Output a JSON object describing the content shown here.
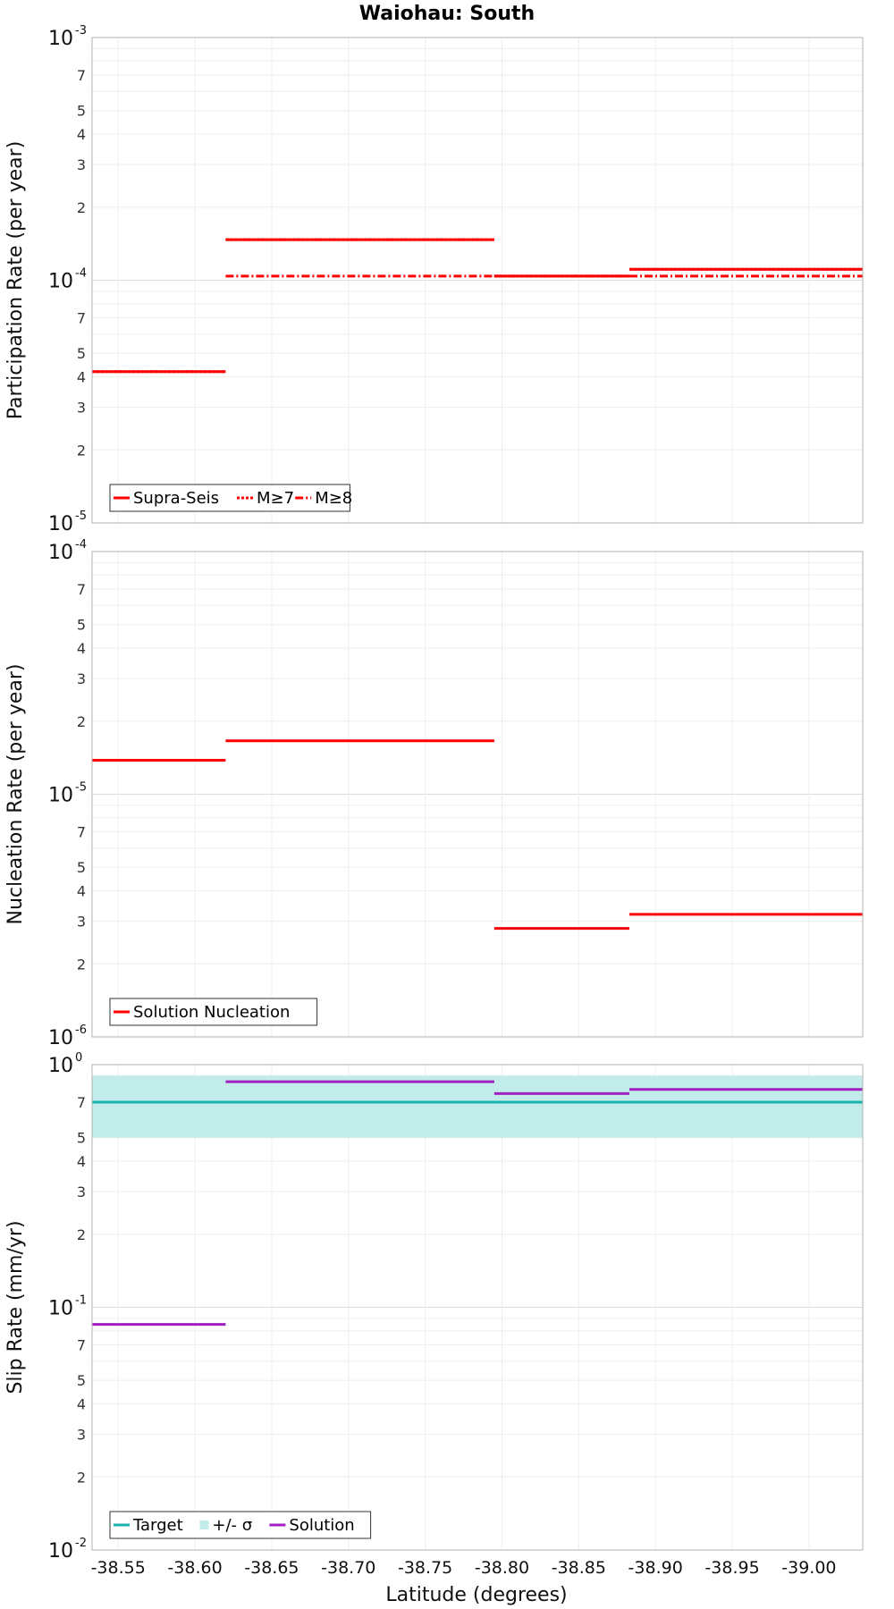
{
  "title": "Waiohau: South",
  "xlabel": "Latitude (degrees)",
  "x_range": [
    -38.533,
    -39.035
  ],
  "x_ticks": [
    {
      "value": -38.55,
      "label": "-38.55"
    },
    {
      "value": -38.6,
      "label": "-38.60"
    },
    {
      "value": -38.65,
      "label": "-38.65"
    },
    {
      "value": -38.7,
      "label": "-38.70"
    },
    {
      "value": -38.75,
      "label": "-38.75"
    },
    {
      "value": -38.8,
      "label": "-38.80"
    },
    {
      "value": -38.85,
      "label": "-38.85"
    },
    {
      "value": -38.9,
      "label": "-38.90"
    },
    {
      "value": -38.95,
      "label": "-38.95"
    },
    {
      "value": -39.0,
      "label": "-39.00"
    }
  ],
  "chart_data": [
    {
      "type": "line",
      "name": "participation",
      "ylabel": "Participation Rate (per year)",
      "yscale": "log",
      "ylim": [
        1e-05,
        0.001
      ],
      "y_major_labels": [
        {
          "value": 0.001,
          "base": "10",
          "exp": "-3"
        },
        {
          "value": 0.0001,
          "base": "10",
          "exp": "-4"
        },
        {
          "value": 1e-05,
          "base": "10",
          "exp": "-5"
        }
      ],
      "y_minor_labels": [
        {
          "value": 0.0007,
          "label": "7"
        },
        {
          "value": 0.0005,
          "label": "5"
        },
        {
          "value": 0.0004,
          "label": "4"
        },
        {
          "value": 0.0003,
          "label": "3"
        },
        {
          "value": 0.0002,
          "label": "2"
        },
        {
          "value": 7e-05,
          "label": "7"
        },
        {
          "value": 5e-05,
          "label": "5"
        },
        {
          "value": 4e-05,
          "label": "4"
        },
        {
          "value": 3e-05,
          "label": "3"
        },
        {
          "value": 2e-05,
          "label": "2"
        }
      ],
      "series": [
        {
          "name": "Supra-Seis",
          "color": "#ff0000",
          "dash": "solid",
          "segments": [
            {
              "x": [
                -38.533,
                -38.62
              ],
              "y": 4.2e-05
            },
            {
              "x": [
                -38.62,
                -38.795
              ],
              "y": 0.000147
            },
            {
              "x": [
                -38.795,
                -38.883
              ],
              "y": 0.000104
            },
            {
              "x": [
                -38.883,
                -39.035
              ],
              "y": 0.000111
            }
          ]
        },
        {
          "name": "M≥7",
          "color": "#ff0000",
          "dash": "dotted",
          "segments": [
            {
              "x": [
                -38.533,
                -38.62
              ],
              "y": 4.2e-05
            },
            {
              "x": [
                -38.62,
                -38.795
              ],
              "y": 0.000147
            },
            {
              "x": [
                -38.795,
                -38.883
              ],
              "y": 0.000104
            },
            {
              "x": [
                -38.883,
                -39.035
              ],
              "y": 0.000111
            }
          ]
        },
        {
          "name": "M≥8",
          "color": "#ff0000",
          "dash": "dashdot",
          "segments": [
            {
              "x": [
                -38.62,
                -38.795
              ],
              "y": 0.000104
            },
            {
              "x": [
                -38.795,
                -38.883
              ],
              "y": 0.000104
            },
            {
              "x": [
                -38.883,
                -39.035
              ],
              "y": 0.000104
            }
          ]
        }
      ],
      "legend": [
        {
          "label": "Supra-Seis",
          "color": "#ff0000",
          "style": "solid"
        },
        {
          "label": "M≥7",
          "color": "#ff0000",
          "style": "dotted"
        },
        {
          "label": "M≥8",
          "color": "#ff0000",
          "style": "dashdot"
        }
      ]
    },
    {
      "type": "line",
      "name": "nucleation",
      "ylabel": "Nucleation Rate (per year)",
      "yscale": "log",
      "ylim": [
        1e-06,
        0.0001
      ],
      "y_major_labels": [
        {
          "value": 0.0001,
          "base": "10",
          "exp": "-4"
        },
        {
          "value": 1e-05,
          "base": "10",
          "exp": "-5"
        },
        {
          "value": 1e-06,
          "base": "10",
          "exp": "-6"
        }
      ],
      "y_minor_labels": [
        {
          "value": 7e-05,
          "label": "7"
        },
        {
          "value": 5e-05,
          "label": "5"
        },
        {
          "value": 4e-05,
          "label": "4"
        },
        {
          "value": 3e-05,
          "label": "3"
        },
        {
          "value": 2e-05,
          "label": "2"
        },
        {
          "value": 7e-06,
          "label": "7"
        },
        {
          "value": 5e-06,
          "label": "5"
        },
        {
          "value": 4e-06,
          "label": "4"
        },
        {
          "value": 3e-06,
          "label": "3"
        },
        {
          "value": 2e-06,
          "label": "2"
        }
      ],
      "series": [
        {
          "name": "Solution Nucleation",
          "color": "#ff0000",
          "dash": "solid",
          "segments": [
            {
              "x": [
                -38.533,
                -38.62
              ],
              "y": 1.38e-05
            },
            {
              "x": [
                -38.62,
                -38.795
              ],
              "y": 1.66e-05
            },
            {
              "x": [
                -38.795,
                -38.883
              ],
              "y": 2.8e-06
            },
            {
              "x": [
                -38.883,
                -39.035
              ],
              "y": 3.2e-06
            }
          ]
        }
      ],
      "legend": [
        {
          "label": "Solution Nucleation",
          "color": "#ff0000",
          "style": "solid"
        }
      ]
    },
    {
      "type": "line",
      "name": "slip",
      "ylabel": "Slip Rate (mm/yr)",
      "yscale": "log",
      "ylim": [
        0.01,
        1
      ],
      "y_major_labels": [
        {
          "value": 1,
          "base": "10",
          "exp": "0"
        },
        {
          "value": 0.1,
          "base": "10",
          "exp": "-1"
        },
        {
          "value": 0.01,
          "base": "10",
          "exp": "-2"
        }
      ],
      "y_minor_labels": [
        {
          "value": 0.7,
          "label": "7"
        },
        {
          "value": 0.5,
          "label": "5"
        },
        {
          "value": 0.4,
          "label": "4"
        },
        {
          "value": 0.3,
          "label": "3"
        },
        {
          "value": 0.2,
          "label": "2"
        },
        {
          "value": 0.07,
          "label": "7"
        },
        {
          "value": 0.05,
          "label": "5"
        },
        {
          "value": 0.04,
          "label": "4"
        },
        {
          "value": 0.03,
          "label": "3"
        },
        {
          "value": 0.02,
          "label": "2"
        }
      ],
      "band": {
        "name": "+/- σ",
        "color": "#c2ecea",
        "x": [
          -38.533,
          -39.035
        ],
        "y": [
          0.5,
          0.9
        ]
      },
      "series": [
        {
          "name": "Target",
          "color": "#1ab2ac",
          "dash": "solid",
          "segments": [
            {
              "x": [
                -38.533,
                -39.035
              ],
              "y": 0.7
            }
          ]
        },
        {
          "name": "Solution",
          "color": "#a020c0",
          "dash": "solid",
          "segments": [
            {
              "x": [
                -38.533,
                -38.62
              ],
              "y": 0.085
            },
            {
              "x": [
                -38.62,
                -38.795
              ],
              "y": 0.85
            },
            {
              "x": [
                -38.795,
                -38.883
              ],
              "y": 0.76
            },
            {
              "x": [
                -38.883,
                -39.035
              ],
              "y": 0.79
            }
          ]
        }
      ],
      "legend": [
        {
          "label": "Target",
          "color": "#1ab2ac",
          "style": "solid"
        },
        {
          "label": "+/- σ",
          "color": "#c2ecea",
          "style": "box"
        },
        {
          "label": "Solution",
          "color": "#a020c0",
          "style": "solid"
        }
      ]
    }
  ]
}
